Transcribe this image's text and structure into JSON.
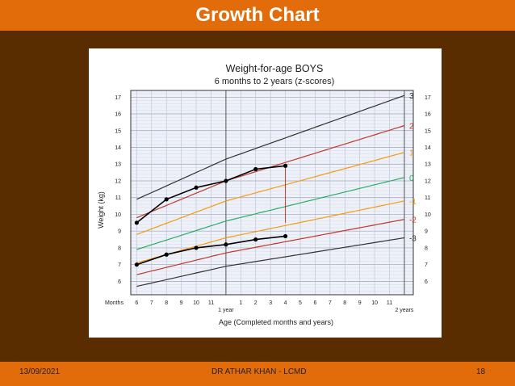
{
  "slide": {
    "title": "Growth Chart",
    "footer_date": "13/09/2021",
    "footer_author": "DR ATHAR KHAN - LCMD",
    "footer_page": "18",
    "colors": {
      "header": "#e36c0a",
      "background": "#5a2d00"
    }
  },
  "chart_data": {
    "type": "line",
    "title": "Weight-for-age  BOYS",
    "subtitle": "6 months to 2 years (z-scores)",
    "ylabel": "Weight (kg)",
    "xlabel": "Age (Completed months and years)",
    "x_row_label": "Months",
    "ylim": [
      5.2,
      17.4
    ],
    "xlim": [
      5.6,
      24.6
    ],
    "yticks": [
      6,
      7,
      8,
      9,
      10,
      11,
      12,
      13,
      14,
      15,
      16,
      17
    ],
    "xticks": [
      {
        "x": 6,
        "label": "6"
      },
      {
        "x": 7,
        "label": "7"
      },
      {
        "x": 8,
        "label": "8"
      },
      {
        "x": 9,
        "label": "9"
      },
      {
        "x": 10,
        "label": "10"
      },
      {
        "x": 11,
        "label": "11"
      },
      {
        "x": 13,
        "label": "1"
      },
      {
        "x": 14,
        "label": "2"
      },
      {
        "x": 15,
        "label": "3"
      },
      {
        "x": 16,
        "label": "4"
      },
      {
        "x": 17,
        "label": "5"
      },
      {
        "x": 18,
        "label": "6"
      },
      {
        "x": 19,
        "label": "7"
      },
      {
        "x": 20,
        "label": "8"
      },
      {
        "x": 21,
        "label": "9"
      },
      {
        "x": 22,
        "label": "10"
      },
      {
        "x": 23,
        "label": "11"
      }
    ],
    "year_labels": [
      {
        "x": 12,
        "label": "1 year"
      },
      {
        "x": 24,
        "label": "2 years"
      }
    ],
    "reference_lines": [
      {
        "name": "3",
        "color": "#333333",
        "values": [
          [
            6,
            10.9
          ],
          [
            12,
            13.3
          ],
          [
            24,
            17.1
          ]
        ]
      },
      {
        "name": "2",
        "color": "#c0392b",
        "values": [
          [
            6,
            9.8
          ],
          [
            12,
            12.0
          ],
          [
            24,
            15.3
          ]
        ]
      },
      {
        "name": "1",
        "color": "#f39c12",
        "values": [
          [
            6,
            8.8
          ],
          [
            12,
            10.8
          ],
          [
            24,
            13.7
          ]
        ]
      },
      {
        "name": "0",
        "color": "#27ae60",
        "values": [
          [
            6,
            7.9
          ],
          [
            12,
            9.6
          ],
          [
            24,
            12.2
          ]
        ]
      },
      {
        "name": "-1",
        "color": "#f39c12",
        "values": [
          [
            6,
            7.1
          ],
          [
            12,
            8.6
          ],
          [
            24,
            10.8
          ]
        ]
      },
      {
        "name": "-2",
        "color": "#c0392b",
        "values": [
          [
            6,
            6.4
          ],
          [
            12,
            7.7
          ],
          [
            24,
            9.7
          ]
        ]
      },
      {
        "name": "-3",
        "color": "#333333",
        "values": [
          [
            6,
            5.7
          ],
          [
            12,
            6.9
          ],
          [
            24,
            8.6
          ]
        ]
      }
    ],
    "series": [
      {
        "values": [
          [
            6,
            9.5
          ],
          [
            8,
            10.9
          ],
          [
            10,
            11.6
          ],
          [
            12,
            12.0
          ],
          [
            14,
            12.7
          ],
          [
            16,
            12.9
          ]
        ]
      },
      {
        "values": [
          [
            6,
            7.0
          ],
          [
            8,
            7.6
          ],
          [
            10,
            8.0
          ],
          [
            12,
            8.2
          ],
          [
            14,
            8.5
          ],
          [
            16,
            8.7
          ]
        ]
      }
    ],
    "marker_line": {
      "x": 16,
      "y_from": 9.5,
      "y_to": 12.9,
      "color": "#c0392b"
    }
  }
}
